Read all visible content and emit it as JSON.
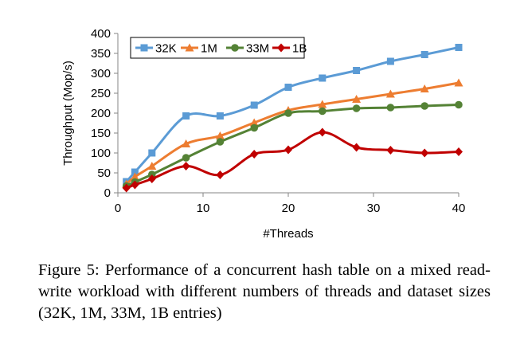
{
  "chart_data": {
    "type": "line",
    "title": "",
    "xlabel": "#Threads",
    "ylabel": "Throughput (Mop/s)",
    "xlim": [
      0,
      40
    ],
    "ylim": [
      0,
      400
    ],
    "xticks": [
      0,
      10,
      20,
      30,
      40
    ],
    "yticks": [
      0,
      50,
      100,
      150,
      200,
      250,
      300,
      350,
      400
    ],
    "grid": false,
    "legend_position": "top-left",
    "x": [
      1,
      2,
      4,
      8,
      12,
      16,
      20,
      24,
      28,
      32,
      36,
      40
    ],
    "series": [
      {
        "name": "32K",
        "color": "#5B9BD5",
        "marker": "square",
        "values": [
          28,
          52,
          100,
          193,
          193,
          220,
          265,
          288,
          307,
          330,
          347,
          365
        ]
      },
      {
        "name": "1M",
        "color": "#ED7D31",
        "marker": "triangle",
        "values": [
          22,
          40,
          67,
          123,
          143,
          176,
          207,
          222,
          235,
          248,
          261,
          276
        ]
      },
      {
        "name": "33M",
        "color": "#548235",
        "marker": "circle",
        "values": [
          17,
          27,
          46,
          88,
          128,
          163,
          200,
          205,
          212,
          214,
          218,
          221
        ]
      },
      {
        "name": "1B",
        "color": "#C00000",
        "marker": "diamond",
        "values": [
          12,
          20,
          35,
          67,
          45,
          97,
          108,
          152,
          114,
          107,
          100,
          103
        ]
      }
    ]
  },
  "caption": {
    "text": "Figure 5: Performance of a concurrent hash table on a mixed read-write workload with different numbers of threads and dataset sizes (32K, 1M, 33M, 1B entries)"
  }
}
